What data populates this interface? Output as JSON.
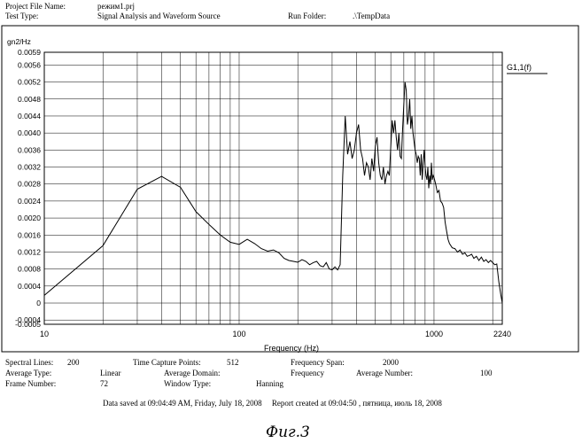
{
  "header": {
    "project_label": "Project File Name:",
    "project_value": "режим1.prj",
    "test_type_label": "Test Type:",
    "test_type_value": "Signal Analysis and Waveform Source",
    "run_folder_label": "Run Folder:",
    "run_folder_value": ".\\TempData"
  },
  "chart_data": {
    "type": "line",
    "title": "",
    "xlabel": "Frequency (Hz)",
    "ylabel": "gn2/Hz",
    "xscale": "log",
    "xlim": [
      10,
      2240
    ],
    "ylim": [
      -0.0005,
      0.0059
    ],
    "x_tick_labels": [
      "10",
      "100",
      "1000",
      "2240"
    ],
    "y_tick_labels": [
      "0.0059",
      "0.0056",
      "0.0052",
      "0.0048",
      "0.0044",
      "0.0040",
      "0.0036",
      "0.0032",
      "0.0028",
      "0.0024",
      "0.0020",
      "0.0016",
      "0.0012",
      "0.0008",
      "0.0004",
      "0",
      "-0.0004",
      "-0.0005"
    ],
    "grid": true,
    "legend_position": "top-right",
    "series": [
      {
        "name": "G1,1(f)",
        "x": [
          10,
          20,
          30,
          40,
          50,
          60,
          70,
          80,
          90,
          100,
          110,
          120,
          130,
          140,
          150,
          160,
          170,
          180,
          190,
          200,
          210,
          220,
          230,
          240,
          250,
          260,
          270,
          280,
          290,
          300,
          310,
          320,
          330,
          340,
          350,
          360,
          370,
          380,
          390,
          400,
          410,
          420,
          430,
          440,
          450,
          460,
          470,
          480,
          490,
          500,
          510,
          520,
          530,
          540,
          550,
          560,
          570,
          580,
          590,
          600,
          610,
          620,
          630,
          640,
          650,
          660,
          670,
          680,
          690,
          700,
          710,
          720,
          730,
          740,
          750,
          760,
          770,
          780,
          790,
          800,
          810,
          820,
          830,
          840,
          850,
          860,
          870,
          880,
          890,
          900,
          910,
          920,
          930,
          940,
          950,
          960,
          970,
          980,
          990,
          1000,
          1020,
          1040,
          1060,
          1080,
          1100,
          1120,
          1140,
          1160,
          1180,
          1200,
          1240,
          1280,
          1320,
          1360,
          1400,
          1440,
          1480,
          1520,
          1560,
          1600,
          1650,
          1700,
          1750,
          1800,
          1850,
          1900,
          1950,
          2000,
          2050,
          2100,
          2150,
          2200,
          2240
        ],
        "y": [
          0.00018,
          0.00135,
          0.00268,
          0.00298,
          0.00272,
          0.00215,
          0.00185,
          0.0016,
          0.00143,
          0.00138,
          0.0015,
          0.0014,
          0.00128,
          0.00122,
          0.00125,
          0.00118,
          0.00105,
          0.001,
          0.00098,
          0.00096,
          0.00102,
          0.00098,
          0.0009,
          0.00095,
          0.00098,
          0.00088,
          0.00085,
          0.00095,
          0.0008,
          0.00078,
          0.00085,
          0.00078,
          0.0009,
          0.003,
          0.0044,
          0.0035,
          0.0038,
          0.0034,
          0.0036,
          0.004,
          0.0042,
          0.0036,
          0.0034,
          0.003,
          0.0033,
          0.0032,
          0.0029,
          0.0034,
          0.0031,
          0.0037,
          0.0039,
          0.0033,
          0.003,
          0.0029,
          0.0032,
          0.0028,
          0.003,
          0.0031,
          0.003,
          0.0037,
          0.0043,
          0.004,
          0.0043,
          0.0039,
          0.0036,
          0.004,
          0.00345,
          0.0034,
          0.0041,
          0.0047,
          0.0052,
          0.005,
          0.0042,
          0.0044,
          0.0048,
          0.0041,
          0.0044,
          0.004,
          0.0038,
          0.0036,
          0.0035,
          0.0033,
          0.00345,
          0.0034,
          0.003,
          0.0035,
          0.0029,
          0.0033,
          0.0036,
          0.0032,
          0.003,
          0.0029,
          0.0032,
          0.0027,
          0.003,
          0.0028,
          0.0033,
          0.0029,
          0.003,
          0.00295,
          0.0028,
          0.0026,
          0.00265,
          0.0024,
          0.00235,
          0.00225,
          0.0019,
          0.0017,
          0.0015,
          0.0014,
          0.0013,
          0.00128,
          0.0012,
          0.00125,
          0.00115,
          0.00118,
          0.0011,
          0.00112,
          0.00115,
          0.00105,
          0.0011,
          0.001,
          0.00108,
          0.00098,
          0.00102,
          0.00095,
          0.001,
          0.00095,
          0.0009,
          0.00092,
          0.0005,
          0.0002,
          0.0
        ]
      }
    ]
  },
  "footer": {
    "spectral_lines_label": "Spectral Lines:",
    "spectral_lines_value": "200",
    "time_capture_label": "Time Capture Points:",
    "time_capture_value": "512",
    "frequency_span_label": "Frequency Span:",
    "frequency_span_value": "2000",
    "average_type_label": "Average Type:",
    "average_type_value": "Linear",
    "average_domain_label": "Average Domain:",
    "average_domain_value": "Frequency",
    "average_number_label": "Average Number:",
    "average_number_value": "100",
    "frame_number_label": "Frame Number:",
    "frame_number_value": "72",
    "window_type_label": "Window Type:",
    "window_type_value": "Hanning",
    "saved_line": "Data saved at 09:04:49 AM, Friday, July 18, 2008     Report created at 09:04:50 , пятница, июль 18, 2008"
  },
  "caption": "Фиг.3"
}
